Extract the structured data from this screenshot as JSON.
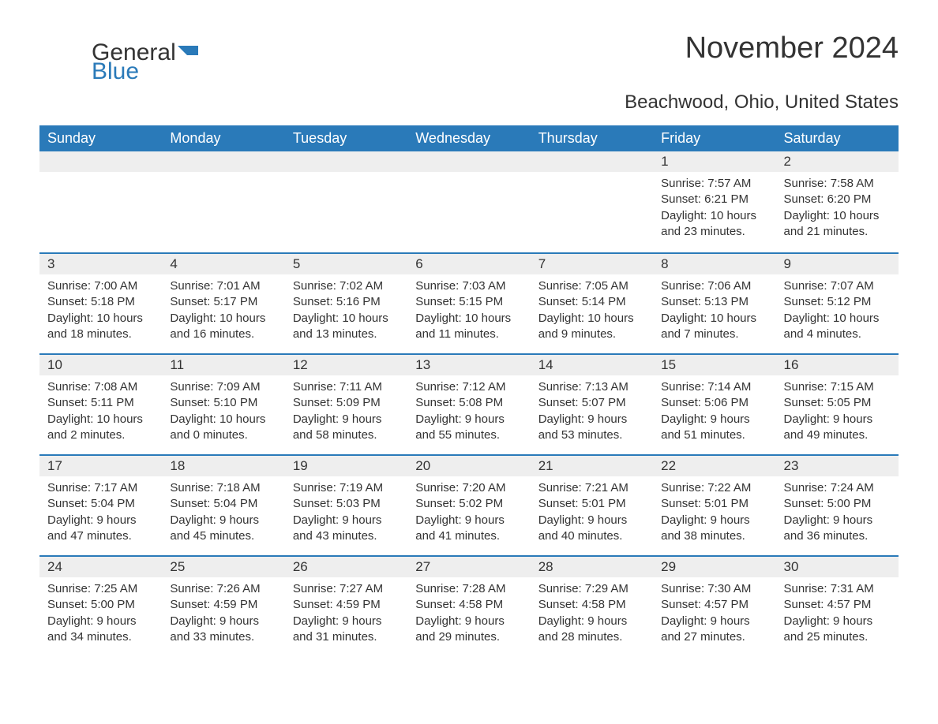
{
  "logo": {
    "text_general": "General",
    "text_blue": "Blue",
    "flag_color": "#2a7ab9"
  },
  "title": "November 2024",
  "location": "Beachwood, Ohio, United States",
  "header_bg": "#2a7ab9",
  "header_fg": "#ffffff",
  "day_header_bg": "#eeeeee",
  "border_color": "#2a7ab9",
  "text_color": "#333333",
  "columns": [
    "Sunday",
    "Monday",
    "Tuesday",
    "Wednesday",
    "Thursday",
    "Friday",
    "Saturday"
  ],
  "weeks": [
    [
      null,
      null,
      null,
      null,
      null,
      {
        "day": "1",
        "sunrise": "Sunrise: 7:57 AM",
        "sunset": "Sunset: 6:21 PM",
        "daylight": "Daylight: 10 hours and 23 minutes."
      },
      {
        "day": "2",
        "sunrise": "Sunrise: 7:58 AM",
        "sunset": "Sunset: 6:20 PM",
        "daylight": "Daylight: 10 hours and 21 minutes."
      }
    ],
    [
      {
        "day": "3",
        "sunrise": "Sunrise: 7:00 AM",
        "sunset": "Sunset: 5:18 PM",
        "daylight": "Daylight: 10 hours and 18 minutes."
      },
      {
        "day": "4",
        "sunrise": "Sunrise: 7:01 AM",
        "sunset": "Sunset: 5:17 PM",
        "daylight": "Daylight: 10 hours and 16 minutes."
      },
      {
        "day": "5",
        "sunrise": "Sunrise: 7:02 AM",
        "sunset": "Sunset: 5:16 PM",
        "daylight": "Daylight: 10 hours and 13 minutes."
      },
      {
        "day": "6",
        "sunrise": "Sunrise: 7:03 AM",
        "sunset": "Sunset: 5:15 PM",
        "daylight": "Daylight: 10 hours and 11 minutes."
      },
      {
        "day": "7",
        "sunrise": "Sunrise: 7:05 AM",
        "sunset": "Sunset: 5:14 PM",
        "daylight": "Daylight: 10 hours and 9 minutes."
      },
      {
        "day": "8",
        "sunrise": "Sunrise: 7:06 AM",
        "sunset": "Sunset: 5:13 PM",
        "daylight": "Daylight: 10 hours and 7 minutes."
      },
      {
        "day": "9",
        "sunrise": "Sunrise: 7:07 AM",
        "sunset": "Sunset: 5:12 PM",
        "daylight": "Daylight: 10 hours and 4 minutes."
      }
    ],
    [
      {
        "day": "10",
        "sunrise": "Sunrise: 7:08 AM",
        "sunset": "Sunset: 5:11 PM",
        "daylight": "Daylight: 10 hours and 2 minutes."
      },
      {
        "day": "11",
        "sunrise": "Sunrise: 7:09 AM",
        "sunset": "Sunset: 5:10 PM",
        "daylight": "Daylight: 10 hours and 0 minutes."
      },
      {
        "day": "12",
        "sunrise": "Sunrise: 7:11 AM",
        "sunset": "Sunset: 5:09 PM",
        "daylight": "Daylight: 9 hours and 58 minutes."
      },
      {
        "day": "13",
        "sunrise": "Sunrise: 7:12 AM",
        "sunset": "Sunset: 5:08 PM",
        "daylight": "Daylight: 9 hours and 55 minutes."
      },
      {
        "day": "14",
        "sunrise": "Sunrise: 7:13 AM",
        "sunset": "Sunset: 5:07 PM",
        "daylight": "Daylight: 9 hours and 53 minutes."
      },
      {
        "day": "15",
        "sunrise": "Sunrise: 7:14 AM",
        "sunset": "Sunset: 5:06 PM",
        "daylight": "Daylight: 9 hours and 51 minutes."
      },
      {
        "day": "16",
        "sunrise": "Sunrise: 7:15 AM",
        "sunset": "Sunset: 5:05 PM",
        "daylight": "Daylight: 9 hours and 49 minutes."
      }
    ],
    [
      {
        "day": "17",
        "sunrise": "Sunrise: 7:17 AM",
        "sunset": "Sunset: 5:04 PM",
        "daylight": "Daylight: 9 hours and 47 minutes."
      },
      {
        "day": "18",
        "sunrise": "Sunrise: 7:18 AM",
        "sunset": "Sunset: 5:04 PM",
        "daylight": "Daylight: 9 hours and 45 minutes."
      },
      {
        "day": "19",
        "sunrise": "Sunrise: 7:19 AM",
        "sunset": "Sunset: 5:03 PM",
        "daylight": "Daylight: 9 hours and 43 minutes."
      },
      {
        "day": "20",
        "sunrise": "Sunrise: 7:20 AM",
        "sunset": "Sunset: 5:02 PM",
        "daylight": "Daylight: 9 hours and 41 minutes."
      },
      {
        "day": "21",
        "sunrise": "Sunrise: 7:21 AM",
        "sunset": "Sunset: 5:01 PM",
        "daylight": "Daylight: 9 hours and 40 minutes."
      },
      {
        "day": "22",
        "sunrise": "Sunrise: 7:22 AM",
        "sunset": "Sunset: 5:01 PM",
        "daylight": "Daylight: 9 hours and 38 minutes."
      },
      {
        "day": "23",
        "sunrise": "Sunrise: 7:24 AM",
        "sunset": "Sunset: 5:00 PM",
        "daylight": "Daylight: 9 hours and 36 minutes."
      }
    ],
    [
      {
        "day": "24",
        "sunrise": "Sunrise: 7:25 AM",
        "sunset": "Sunset: 5:00 PM",
        "daylight": "Daylight: 9 hours and 34 minutes."
      },
      {
        "day": "25",
        "sunrise": "Sunrise: 7:26 AM",
        "sunset": "Sunset: 4:59 PM",
        "daylight": "Daylight: 9 hours and 33 minutes."
      },
      {
        "day": "26",
        "sunrise": "Sunrise: 7:27 AM",
        "sunset": "Sunset: 4:59 PM",
        "daylight": "Daylight: 9 hours and 31 minutes."
      },
      {
        "day": "27",
        "sunrise": "Sunrise: 7:28 AM",
        "sunset": "Sunset: 4:58 PM",
        "daylight": "Daylight: 9 hours and 29 minutes."
      },
      {
        "day": "28",
        "sunrise": "Sunrise: 7:29 AM",
        "sunset": "Sunset: 4:58 PM",
        "daylight": "Daylight: 9 hours and 28 minutes."
      },
      {
        "day": "29",
        "sunrise": "Sunrise: 7:30 AM",
        "sunset": "Sunset: 4:57 PM",
        "daylight": "Daylight: 9 hours and 27 minutes."
      },
      {
        "day": "30",
        "sunrise": "Sunrise: 7:31 AM",
        "sunset": "Sunset: 4:57 PM",
        "daylight": "Daylight: 9 hours and 25 minutes."
      }
    ]
  ]
}
